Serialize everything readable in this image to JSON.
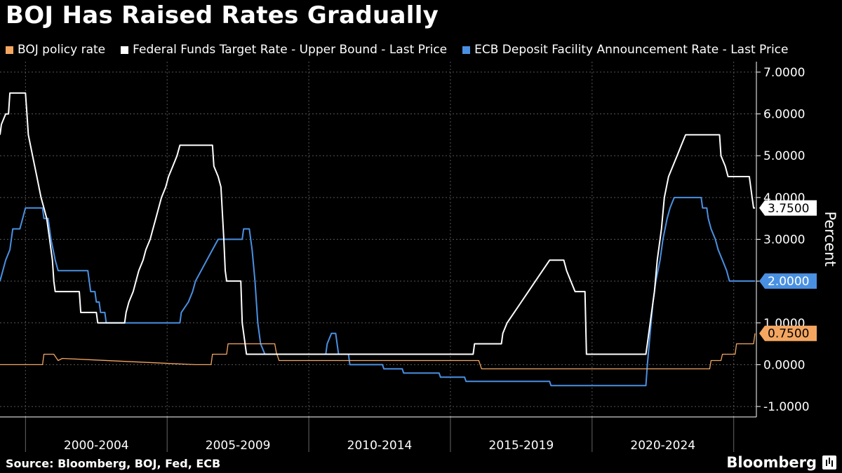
{
  "chart_data": {
    "type": "line",
    "title": "BOJ Has Raised Rates Gradually",
    "ylabel": "Percent",
    "xlabel": "",
    "x_tick_labels": [
      "2000-2004",
      "2005-2009",
      "2010-2014",
      "2015-2019",
      "2020-2024"
    ],
    "x_range": [
      1999.1,
      2025.8
    ],
    "ylim": [
      -1.25,
      7.25
    ],
    "y_ticks": [
      "7.0000",
      "6.0000",
      "5.0000",
      "4.0000",
      "3.0000",
      "2.0000",
      "1.0000",
      "0.0000",
      "-1.0000"
    ],
    "grid": true,
    "legend_position": "top-left",
    "series": [
      {
        "name": "BOJ policy rate",
        "color": "#f4a660",
        "last_label": "0.7500",
        "points": [
          [
            1999.1,
            0
          ],
          [
            2000.0,
            0
          ],
          [
            2000.6,
            0
          ],
          [
            2000.65,
            0.25
          ],
          [
            2001.0,
            0.25
          ],
          [
            2001.15,
            0.1
          ],
          [
            2001.3,
            0.15
          ],
          [
            2006.0,
            0
          ],
          [
            2006.55,
            0
          ],
          [
            2006.6,
            0.25
          ],
          [
            2007.1,
            0.25
          ],
          [
            2007.15,
            0.5
          ],
          [
            2008.8,
            0.5
          ],
          [
            2008.85,
            0.3
          ],
          [
            2008.95,
            0.1
          ],
          [
            2016.0,
            0.1
          ],
          [
            2016.1,
            -0.1
          ],
          [
            2024.15,
            -0.1
          ],
          [
            2024.2,
            0.1
          ],
          [
            2024.55,
            0.1
          ],
          [
            2024.6,
            0.25
          ],
          [
            2025.05,
            0.25
          ],
          [
            2025.1,
            0.5
          ],
          [
            2025.7,
            0.5
          ],
          [
            2025.75,
            0.75
          ]
        ]
      },
      {
        "name": "Federal Funds Target Rate - Upper Bound - Last Price",
        "color": "#ffffff",
        "last_label": "3.7500",
        "points": [
          [
            1999.1,
            5.5
          ],
          [
            1999.15,
            5.75
          ],
          [
            1999.3,
            6
          ],
          [
            1999.4,
            6
          ],
          [
            1999.45,
            6.5
          ],
          [
            2000.0,
            6.5
          ],
          [
            2000.05,
            6
          ],
          [
            2000.1,
            5.5
          ],
          [
            2000.25,
            5
          ],
          [
            2000.4,
            4.5
          ],
          [
            2000.55,
            4
          ],
          [
            2000.65,
            3.75
          ],
          [
            2000.75,
            3.5
          ],
          [
            2000.85,
            3
          ],
          [
            2000.95,
            2.5
          ],
          [
            2001.0,
            2
          ],
          [
            2001.05,
            1.75
          ],
          [
            2001.9,
            1.75
          ],
          [
            2001.95,
            1.25
          ],
          [
            2002.5,
            1.25
          ],
          [
            2002.55,
            1
          ],
          [
            2003.5,
            1
          ],
          [
            2003.55,
            1.25
          ],
          [
            2003.65,
            1.5
          ],
          [
            2003.8,
            1.75
          ],
          [
            2003.9,
            2
          ],
          [
            2004.0,
            2.25
          ],
          [
            2004.15,
            2.5
          ],
          [
            2004.25,
            2.75
          ],
          [
            2004.4,
            3
          ],
          [
            2004.5,
            3.25
          ],
          [
            2004.6,
            3.5
          ],
          [
            2004.7,
            3.75
          ],
          [
            2004.8,
            4
          ],
          [
            2004.95,
            4.25
          ],
          [
            2005.05,
            4.5
          ],
          [
            2005.2,
            4.75
          ],
          [
            2005.35,
            5
          ],
          [
            2005.45,
            5.25
          ],
          [
            2006.6,
            5.25
          ],
          [
            2006.65,
            4.75
          ],
          [
            2006.8,
            4.5
          ],
          [
            2006.9,
            4.25
          ],
          [
            2007.0,
            3
          ],
          [
            2007.05,
            2.25
          ],
          [
            2007.1,
            2
          ],
          [
            2007.6,
            2
          ],
          [
            2007.65,
            1
          ],
          [
            2007.8,
            0.25
          ],
          [
            2015.8,
            0.25
          ],
          [
            2015.85,
            0.5
          ],
          [
            2016.8,
            0.5
          ],
          [
            2016.85,
            0.75
          ],
          [
            2017.0,
            1
          ],
          [
            2017.25,
            1.25
          ],
          [
            2017.5,
            1.5
          ],
          [
            2017.75,
            1.75
          ],
          [
            2018.0,
            2
          ],
          [
            2018.25,
            2.25
          ],
          [
            2018.5,
            2.5
          ],
          [
            2019.0,
            2.5
          ],
          [
            2019.1,
            2.25
          ],
          [
            2019.25,
            2
          ],
          [
            2019.4,
            1.75
          ],
          [
            2019.75,
            1.75
          ],
          [
            2019.8,
            0.25
          ],
          [
            2021.9,
            0.25
          ],
          [
            2021.95,
            0.5
          ],
          [
            2022.05,
            1
          ],
          [
            2022.2,
            1.75
          ],
          [
            2022.3,
            2.5
          ],
          [
            2022.45,
            3.25
          ],
          [
            2022.55,
            4
          ],
          [
            2022.7,
            4.5
          ],
          [
            2022.85,
            4.75
          ],
          [
            2023.0,
            5
          ],
          [
            2023.15,
            5.25
          ],
          [
            2023.3,
            5.5
          ],
          [
            2024.5,
            5.5
          ],
          [
            2024.55,
            5
          ],
          [
            2024.7,
            4.75
          ],
          [
            2024.8,
            4.5
          ],
          [
            2025.55,
            4.5
          ],
          [
            2025.6,
            4.25
          ],
          [
            2025.65,
            4
          ],
          [
            2025.7,
            3.75
          ],
          [
            2025.75,
            3.75
          ]
        ]
      },
      {
        "name": "ECB Deposit Facility Announcement Rate - Last Price",
        "color": "#4a90e2",
        "last_label": "2.0000",
        "points": [
          [
            1999.1,
            2
          ],
          [
            1999.3,
            2.5
          ],
          [
            1999.45,
            2.75
          ],
          [
            1999.55,
            3.25
          ],
          [
            1999.8,
            3.25
          ],
          [
            1999.9,
            3.5
          ],
          [
            2000.0,
            3.75
          ],
          [
            2000.6,
            3.75
          ],
          [
            2000.65,
            3.5
          ],
          [
            2000.8,
            3.5
          ],
          [
            2000.9,
            3
          ],
          [
            2001.05,
            2.5
          ],
          [
            2001.15,
            2.25
          ],
          [
            2002.2,
            2.25
          ],
          [
            2002.3,
            1.75
          ],
          [
            2002.45,
            1.75
          ],
          [
            2002.5,
            1.5
          ],
          [
            2002.6,
            1.5
          ],
          [
            2002.65,
            1.25
          ],
          [
            2002.8,
            1.25
          ],
          [
            2002.85,
            1
          ],
          [
            2005.45,
            1
          ],
          [
            2005.5,
            1.25
          ],
          [
            2005.75,
            1.5
          ],
          [
            2005.9,
            1.75
          ],
          [
            2006.0,
            2
          ],
          [
            2006.2,
            2.25
          ],
          [
            2006.4,
            2.5
          ],
          [
            2006.6,
            2.75
          ],
          [
            2006.8,
            3
          ],
          [
            2007.65,
            3
          ],
          [
            2007.7,
            3.25
          ],
          [
            2007.9,
            3.25
          ],
          [
            2008.0,
            2.75
          ],
          [
            2008.1,
            2
          ],
          [
            2008.2,
            1
          ],
          [
            2008.3,
            0.5
          ],
          [
            2008.45,
            0.25
          ],
          [
            2010.6,
            0.25
          ],
          [
            2010.65,
            0.5
          ],
          [
            2010.8,
            0.75
          ],
          [
            2010.95,
            0.75
          ],
          [
            2011.05,
            0.25
          ],
          [
            2011.4,
            0.25
          ],
          [
            2011.45,
            0
          ],
          [
            2012.6,
            0
          ],
          [
            2012.65,
            -0.1
          ],
          [
            2013.3,
            -0.1
          ],
          [
            2013.35,
            -0.2
          ],
          [
            2014.6,
            -0.2
          ],
          [
            2014.65,
            -0.3
          ],
          [
            2015.5,
            -0.3
          ],
          [
            2015.55,
            -0.4
          ],
          [
            2018.5,
            -0.4
          ],
          [
            2018.55,
            -0.5
          ],
          [
            2021.9,
            -0.5
          ],
          [
            2021.95,
            0
          ],
          [
            2022.05,
            0.75
          ],
          [
            2022.15,
            1.5
          ],
          [
            2022.25,
            2
          ],
          [
            2022.4,
            2.5
          ],
          [
            2022.5,
            3
          ],
          [
            2022.65,
            3.5
          ],
          [
            2022.75,
            3.75
          ],
          [
            2022.9,
            4
          ],
          [
            2023.85,
            4
          ],
          [
            2023.9,
            3.75
          ],
          [
            2024.05,
            3.75
          ],
          [
            2024.1,
            3.5
          ],
          [
            2024.2,
            3.25
          ],
          [
            2024.35,
            3
          ],
          [
            2024.45,
            2.75
          ],
          [
            2024.6,
            2.5
          ],
          [
            2024.75,
            2.25
          ],
          [
            2024.85,
            2
          ],
          [
            2025.75,
            2
          ]
        ]
      }
    ]
  },
  "footer": {
    "source": "Source: Bloomberg, BOJ, Fed, ECB",
    "brand": "Bloomberg"
  }
}
